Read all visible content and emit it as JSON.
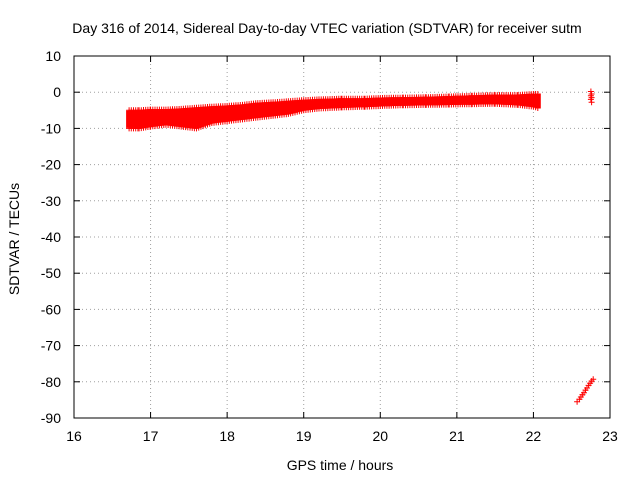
{
  "chart_data": {
    "type": "scatter",
    "title": "Day 316 of 2014, Sidereal Day-to-day VTEC variation (SDTVAR) for receiver sutm",
    "xlabel": "GPS time / hours",
    "ylabel": "SDTVAR / TECUs",
    "xlim": [
      16,
      23
    ],
    "ylim": [
      -90,
      10
    ],
    "xticks": [
      "16",
      "17",
      "18",
      "19",
      "20",
      "21",
      "22",
      "23"
    ],
    "yticks": [
      "10",
      "0",
      "-10",
      "-20",
      "-30",
      "-40",
      "-50",
      "-60",
      "-70",
      "-80",
      "-90"
    ],
    "grid": true,
    "marker": "plus",
    "color": "#ff0000",
    "series": [
      {
        "band": [
          [
            16.72,
            -10.0,
            -5.0
          ],
          [
            16.85,
            -10.0,
            -5.0
          ],
          [
            17.0,
            -9.5,
            -4.8
          ],
          [
            17.2,
            -9.0,
            -4.8
          ],
          [
            17.4,
            -9.5,
            -4.6
          ],
          [
            17.6,
            -10.0,
            -4.3
          ],
          [
            17.8,
            -8.5,
            -4.0
          ],
          [
            18.0,
            -8.0,
            -3.8
          ],
          [
            18.2,
            -7.5,
            -3.5
          ],
          [
            18.4,
            -7.0,
            -3.0
          ],
          [
            18.6,
            -6.5,
            -2.8
          ],
          [
            18.8,
            -6.0,
            -2.5
          ],
          [
            19.0,
            -5.0,
            -2.2
          ],
          [
            19.2,
            -4.5,
            -2.0
          ],
          [
            19.5,
            -4.2,
            -1.8
          ],
          [
            19.8,
            -4.0,
            -1.8
          ],
          [
            20.0,
            -3.8,
            -1.6
          ],
          [
            20.3,
            -3.6,
            -1.5
          ],
          [
            20.6,
            -3.5,
            -1.4
          ],
          [
            20.9,
            -3.4,
            -1.2
          ],
          [
            21.2,
            -3.3,
            -1.0
          ],
          [
            21.5,
            -3.2,
            -0.8
          ],
          [
            21.8,
            -3.5,
            -0.8
          ],
          [
            22.0,
            -4.0,
            -0.5
          ],
          [
            22.08,
            -4.5,
            -0.5
          ]
        ]
      },
      {
        "points": [
          [
            22.75,
            0.2
          ],
          [
            22.76,
            -0.5
          ],
          [
            22.75,
            -1.0
          ],
          [
            22.76,
            -1.5
          ],
          [
            22.75,
            -2.0
          ],
          [
            22.76,
            -2.8
          ]
        ]
      },
      {
        "points": [
          [
            22.57,
            -85.5
          ],
          [
            22.6,
            -84.8
          ],
          [
            22.62,
            -84.2
          ],
          [
            22.64,
            -83.6
          ],
          [
            22.66,
            -83.0
          ],
          [
            22.68,
            -82.3
          ],
          [
            22.7,
            -81.7
          ],
          [
            22.72,
            -81.0
          ],
          [
            22.74,
            -80.4
          ],
          [
            22.76,
            -79.8
          ],
          [
            22.78,
            -79.3
          ]
        ]
      }
    ]
  }
}
